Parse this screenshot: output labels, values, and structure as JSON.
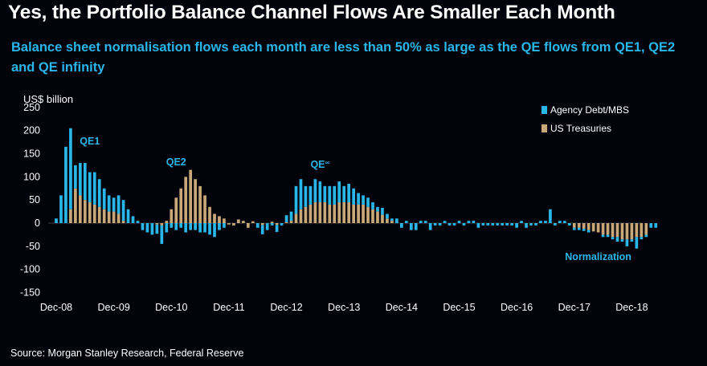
{
  "title": "Yes, the Portfolio Balance Channel Flows Are Smaller Each Month",
  "subtitle": "Balance sheet normalisation flows each month are less than 50% as large as the QE flows from QE1, QE2 and QE infinity",
  "source": "Source: Morgan Stanley Research, Federal Reserve",
  "colors": {
    "agency": "#29b6e8",
    "treasury": "#c8a878",
    "annotation": "#29b6e8",
    "background": "#02020a"
  },
  "chart_data": {
    "type": "bar",
    "stacked": true,
    "title": "Yes, the Portfolio Balance Channel Flows Are Smaller Each Month",
    "ylabel": "US$ billion",
    "xlabel": "",
    "ylim": [
      -150,
      250
    ],
    "yticks": [
      "250",
      "200",
      "150",
      "100",
      "50",
      "0",
      "-50",
      "-100",
      "-150"
    ],
    "ytick_values": [
      250,
      200,
      150,
      100,
      50,
      0,
      -50,
      -100,
      -150
    ],
    "xticks": [
      "Dec-08",
      "Dec-09",
      "Dec-10",
      "Dec-11",
      "Dec-12",
      "Dec-13",
      "Dec-14",
      "Dec-15",
      "Dec-16",
      "Dec-17",
      "Dec-18"
    ],
    "start_month": "Dec-08",
    "legend": {
      "position": "top-right",
      "entries": [
        "Agency Debt/MBS",
        "US Treasuries"
      ]
    },
    "annotations": [
      {
        "text": "QE1",
        "month_index": 7,
        "value": 170
      },
      {
        "text": "QE2",
        "month_index": 25,
        "value": 125
      },
      {
        "text": "QE",
        "superscript": "∞",
        "month_index": 55,
        "value": 120
      },
      {
        "text": "Normalization",
        "month_index": 113,
        "value": -80
      }
    ],
    "series": [
      {
        "name": "US Treasuries",
        "values": [
          0,
          0,
          0,
          30,
          75,
          60,
          50,
          45,
          40,
          35,
          30,
          25,
          25,
          20,
          5,
          0,
          0,
          0,
          0,
          0,
          0,
          -3,
          -5,
          5,
          30,
          55,
          75,
          100,
          115,
          95,
          80,
          60,
          35,
          20,
          15,
          10,
          -3,
          -5,
          8,
          5,
          -10,
          4,
          0,
          -4,
          0,
          3,
          -4,
          0,
          2,
          5,
          20,
          30,
          35,
          40,
          45,
          45,
          45,
          40,
          40,
          45,
          45,
          45,
          40,
          40,
          40,
          35,
          30,
          25,
          18,
          10,
          5,
          0,
          0,
          0,
          0,
          0,
          0,
          0,
          0,
          0,
          0,
          0,
          0,
          0,
          0,
          0,
          0,
          0,
          0,
          0,
          0,
          0,
          0,
          0,
          0,
          0,
          0,
          0,
          0,
          0,
          0,
          0,
          0,
          0,
          0,
          0,
          0,
          0,
          -10,
          -10,
          -12,
          -15,
          -18,
          -20,
          -25,
          -25,
          -30,
          -30,
          -35,
          -35,
          -35,
          -30,
          -30,
          -25
        ]
      },
      {
        "name": "Agency Debt/MBS",
        "values": [
          10,
          60,
          165,
          175,
          50,
          70,
          80,
          65,
          70,
          60,
          45,
          35,
          30,
          40,
          45,
          30,
          15,
          5,
          -15,
          -20,
          -25,
          -20,
          -40,
          -20,
          -10,
          -15,
          -10,
          -20,
          -15,
          -15,
          -20,
          -20,
          -25,
          -30,
          -15,
          -10,
          0,
          0,
          0,
          0,
          0,
          0,
          -10,
          -20,
          -15,
          -5,
          -15,
          -5,
          15,
          20,
          60,
          65,
          45,
          40,
          50,
          45,
          35,
          40,
          40,
          45,
          35,
          40,
          35,
          25,
          20,
          20,
          15,
          10,
          15,
          10,
          5,
          10,
          -10,
          5,
          -15,
          -15,
          5,
          5,
          -15,
          -5,
          -5,
          5,
          -5,
          -5,
          5,
          -5,
          5,
          5,
          -10,
          -5,
          -5,
          -5,
          -5,
          -5,
          -5,
          -5,
          -10,
          5,
          -10,
          -5,
          -5,
          5,
          5,
          30,
          -5,
          5,
          5,
          -5,
          -5,
          -5,
          -5,
          -5,
          0,
          0,
          -5,
          -5,
          -5,
          -10,
          -5,
          -15,
          -5,
          -25,
          -5,
          -5,
          -10,
          -10
        ]
      }
    ]
  }
}
